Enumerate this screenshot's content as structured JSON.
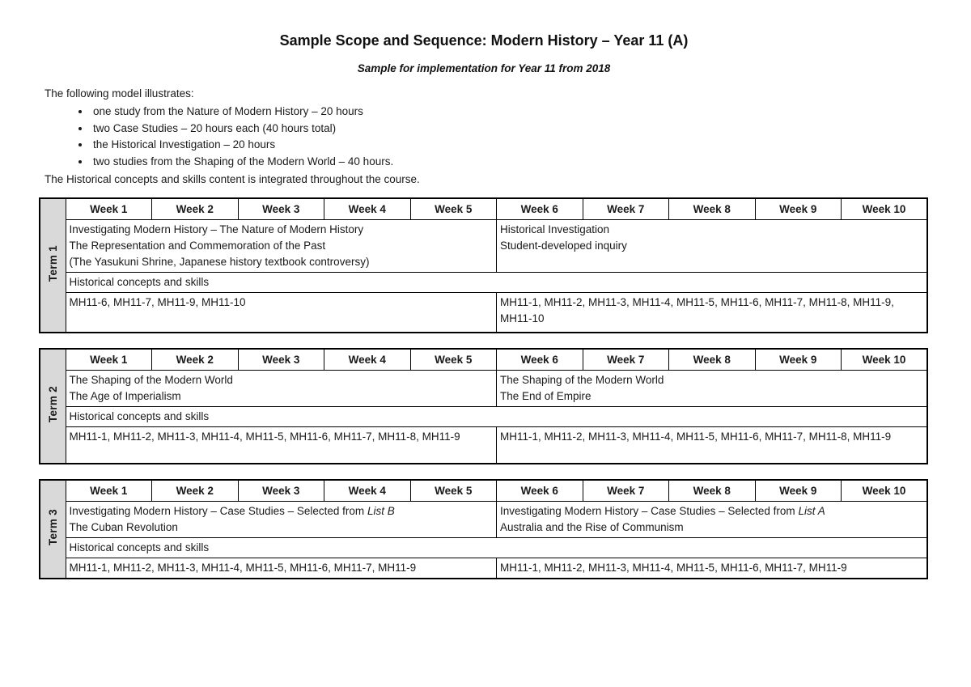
{
  "document": {
    "title": "Sample Scope and Sequence: Modern History – Year 11 (A)",
    "subtitle": "Sample for implementation for Year 11 from 2018",
    "intro": "The following model illustrates:",
    "bullets": [
      "one study from the Nature of Modern History – 20 hours",
      "two Case Studies – 20 hours each (40 hours total)",
      "the Historical Investigation – 20 hours",
      "two studies from the Shaping of the Modern World – 40 hours."
    ],
    "note": "The Historical concepts and skills content is integrated throughout the course."
  },
  "week_headers": [
    "Week 1",
    "Week 2",
    "Week 3",
    "Week 4",
    "Week 5",
    "Week 6",
    "Week 7",
    "Week 8",
    "Week 9",
    "Week 10"
  ],
  "terms": [
    {
      "label": "Term 1",
      "unit_left": {
        "lines": [
          "Investigating Modern History – The Nature of Modern History",
          "The Representation and Commemoration of the Past",
          "(The Yasukuni Shrine, Japanese history textbook controversy)"
        ]
      },
      "unit_right": {
        "lines": [
          "Historical Investigation",
          "Student-developed inquiry"
        ]
      },
      "skills": "Historical concepts and skills",
      "outcomes_left": "MH11-6, MH11-7, MH11-9, MH11-10",
      "outcomes_right": "MH11-1, MH11-2, MH11-3, MH11-4, MH11-5, MH11-6, MH11-7, MH11-8, MH11-9, MH11-10"
    },
    {
      "label": "Term 2",
      "unit_left": {
        "lines": [
          "The Shaping of the Modern World",
          "The Age of Imperialism"
        ]
      },
      "unit_right": {
        "lines": [
          "The Shaping of the Modern World",
          "The End of Empire"
        ]
      },
      "skills": "Historical concepts and skills",
      "outcomes_left": "MH11-1, MH11-2, MH11-3, MH11-4, MH11-5, MH11-6, MH11-7, MH11-8, MH11-9",
      "outcomes_right": "MH11-1, MH11-2, MH11-3, MH11-4, MH11-5, MH11-6, MH11-7, MH11-8, MH11-9"
    },
    {
      "label": "Term 3",
      "unit_left": {
        "line1_prefix": "Investigating Modern History – Case Studies – Selected from ",
        "line1_italic": "List B",
        "line2": "The Cuban Revolution"
      },
      "unit_right": {
        "line1_prefix": "Investigating Modern History – Case Studies – Selected from ",
        "line1_italic": "List A",
        "line2": "Australia and the Rise of Communism"
      },
      "skills": "Historical concepts and skills",
      "outcomes_left": "MH11-1, MH11-2, MH11-3, MH11-4, MH11-5, MH11-6, MH11-7, MH11-9",
      "outcomes_right": "MH11-1, MH11-2, MH11-3, MH11-4, MH11-5, MH11-6, MH11-7, MH11-9"
    }
  ],
  "colors": {
    "term_cell_bg": "#d9d9d9",
    "table_border": "#000000",
    "text": "#1a1a1a",
    "page_bg": "#ffffff"
  }
}
